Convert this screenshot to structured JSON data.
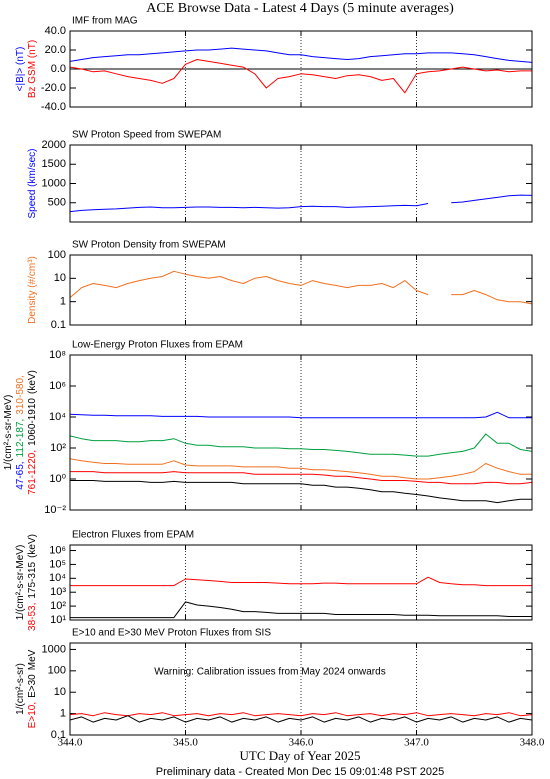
{
  "title": "ACE Browse Data - Latest 4 Days (5 minute averages)",
  "x_label": "UTC Day of Year 2025",
  "footer": "Preliminary data - Created Mon Dec 15 09:01:48 PST 2025",
  "xlim": [
    344,
    348
  ],
  "xticks": [
    {
      "value": 344,
      "label": "344.0"
    },
    {
      "value": 345,
      "label": "345.0"
    },
    {
      "value": 346,
      "label": "346.0"
    },
    {
      "value": 347,
      "label": "347.0"
    },
    {
      "value": 348,
      "label": "348.0"
    }
  ],
  "grid": true,
  "x": [
    344.0,
    344.1,
    344.2,
    344.3,
    344.4,
    344.5,
    344.6,
    344.7,
    344.8,
    344.9,
    345.0,
    345.1,
    345.2,
    345.3,
    345.4,
    345.5,
    345.6,
    345.7,
    345.8,
    345.9,
    346.0,
    346.1,
    346.2,
    346.3,
    346.4,
    346.5,
    346.6,
    346.7,
    346.8,
    346.9,
    347.0,
    347.1,
    347.2,
    347.3,
    347.4,
    347.5,
    347.6,
    347.7,
    347.8,
    347.9,
    348.0
  ],
  "chart_data": [
    {
      "type": "line",
      "title": "IMF from MAG",
      "log": false,
      "zero_line": true,
      "ylim": [
        -40,
        40
      ],
      "yticks": [
        {
          "value": -40,
          "label": "-40.0"
        },
        {
          "value": -20,
          "label": "-20.0"
        },
        {
          "value": 0,
          "label": "0.0"
        },
        {
          "value": 20,
          "label": "20.0"
        },
        {
          "value": 40,
          "label": "40.0"
        }
      ],
      "series": [
        {
          "name": "<|B|> (nT)",
          "color": "#0000ff",
          "values": [
            8,
            10,
            12,
            13,
            14,
            15,
            15,
            16,
            17,
            18,
            19,
            20,
            20,
            21,
            22,
            21,
            20,
            19,
            17,
            15,
            15,
            13,
            12,
            11,
            10,
            11,
            13,
            14,
            15,
            16,
            16,
            17,
            17,
            17,
            16,
            15,
            13,
            11,
            9,
            8,
            7
          ]
        },
        {
          "name": "Bz GSM (nT)",
          "color": "#ff0000",
          "values": [
            2,
            0,
            -3,
            -2,
            -5,
            -8,
            -10,
            -12,
            -15,
            -10,
            5,
            10,
            8,
            6,
            4,
            2,
            -5,
            -20,
            -10,
            -8,
            -5,
            -6,
            -8,
            -10,
            -7,
            -6,
            -8,
            -12,
            -10,
            -25,
            -5,
            -3,
            -2,
            0,
            2,
            0,
            -2,
            -1,
            -3,
            -2,
            -2
          ]
        }
      ]
    },
    {
      "type": "line",
      "title": "SW Proton Speed from SWEPAM",
      "log": false,
      "y_label": "Speed (km/sec)",
      "ylim": [
        0,
        2000
      ],
      "yticks": [
        500,
        1000,
        1500,
        2000
      ],
      "series": [
        {
          "color": "#0000ff",
          "values": [
            270,
            300,
            320,
            330,
            340,
            360,
            380,
            390,
            370,
            370,
            380,
            390,
            390,
            380,
            380,
            370,
            380,
            370,
            360,
            370,
            400,
            410,
            400,
            400,
            380,
            390,
            400,
            410,
            420,
            430,
            420,
            480,
            null,
            500,
            520,
            560,
            600,
            640,
            680,
            700,
            690
          ]
        }
      ]
    },
    {
      "type": "line",
      "title": "SW Proton Density from SWEPAM",
      "log": true,
      "y_label": "Density (#/cm³)",
      "ylim": [
        0.1,
        100
      ],
      "yticks": [
        0.1,
        1,
        10,
        100
      ],
      "series": [
        {
          "color": "#f07020",
          "values": [
            1.5,
            4,
            6,
            5,
            4,
            6,
            8,
            10,
            12,
            20,
            15,
            12,
            10,
            12,
            8,
            6,
            10,
            12,
            8,
            6,
            5,
            8,
            6,
            5,
            4,
            5,
            5,
            6,
            4,
            8,
            3,
            2,
            null,
            2,
            2,
            3,
            2,
            1.2,
            1,
            1,
            0.8
          ]
        }
      ]
    },
    {
      "type": "line",
      "title": "Low-Energy Proton Fluxes from EPAM",
      "log": true,
      "y_label": "1/(cm²-s-sr-MeV)",
      "y_unit": "(keV)",
      "ylim": [
        0.01,
        100000000
      ],
      "yticks": [
        {
          "value": 0.01,
          "label": "10⁻²"
        },
        {
          "value": 1,
          "label": "10⁰"
        },
        {
          "value": 100,
          "label": "10²"
        },
        {
          "value": 10000,
          "label": "10⁴"
        },
        {
          "value": 1000000,
          "label": "10⁶"
        },
        {
          "value": 100000000,
          "label": "10⁸"
        }
      ],
      "series": [
        {
          "name": "47-65,",
          "color": "#0000ff",
          "values": [
            15000,
            14000,
            13000,
            13000,
            12000,
            12000,
            12000,
            12000,
            11000,
            11000,
            11000,
            11000,
            10000,
            10000,
            10000,
            10000,
            10000,
            10000,
            10000,
            10000,
            9000,
            9000,
            9000,
            9000,
            9000,
            9000,
            9000,
            9000,
            9000,
            9000,
            9000,
            9000,
            9000,
            9000,
            9000,
            9000,
            10000,
            20000,
            9000,
            9000,
            9000
          ]
        },
        {
          "name": "112-187,",
          "color": "#00a040",
          "values": [
            600,
            400,
            300,
            300,
            300,
            250,
            250,
            300,
            300,
            400,
            200,
            150,
            150,
            120,
            120,
            120,
            100,
            100,
            100,
            90,
            90,
            80,
            80,
            70,
            60,
            50,
            40,
            40,
            40,
            35,
            30,
            30,
            40,
            50,
            60,
            100,
            800,
            200,
            200,
            80,
            60
          ]
        },
        {
          "name": "310-580,",
          "color": "#f07020",
          "values": [
            20,
            15,
            12,
            10,
            10,
            9,
            9,
            9,
            9,
            15,
            8,
            7,
            7,
            7,
            7,
            6,
            6,
            6,
            6,
            5,
            5,
            4,
            4,
            3.5,
            3,
            2.5,
            2,
            1.5,
            1.5,
            1.2,
            1,
            1,
            1.2,
            1.5,
            2,
            3,
            10,
            5,
            3,
            2,
            2
          ]
        },
        {
          "name": "761-1220,",
          "color": "#ff0000",
          "values": [
            3,
            3,
            3,
            2.5,
            2.5,
            2.5,
            2.5,
            2.5,
            2.5,
            3,
            2.5,
            2.5,
            2.5,
            2.5,
            2.5,
            2.5,
            2,
            2,
            2,
            2,
            2,
            2,
            1.8,
            1.5,
            1.5,
            1.2,
            1,
            0.8,
            0.8,
            0.8,
            0.7,
            0.6,
            0.6,
            0.5,
            0.5,
            0.5,
            0.6,
            0.6,
            0.5,
            0.5,
            0.6
          ]
        },
        {
          "name": "1060-1910",
          "color": "#000000",
          "values": [
            0.8,
            0.8,
            0.8,
            0.7,
            0.7,
            0.7,
            0.7,
            0.6,
            0.6,
            0.7,
            0.6,
            0.6,
            0.6,
            0.6,
            0.6,
            0.5,
            0.5,
            0.5,
            0.5,
            0.5,
            0.5,
            0.4,
            0.4,
            0.3,
            0.3,
            0.25,
            0.2,
            0.15,
            0.15,
            0.12,
            0.1,
            0.08,
            0.06,
            0.05,
            0.04,
            0.04,
            0.04,
            0.03,
            0.04,
            0.05,
            0.05
          ]
        }
      ]
    },
    {
      "type": "line",
      "title": "Electron Fluxes from EPAM",
      "log": true,
      "y_label": "1/(cm²-s-sr-MeV)",
      "y_unit": "(keV)",
      "ylim": [
        10,
        2500000
      ],
      "yticks": [
        {
          "value": 10,
          "label": "10¹"
        },
        {
          "value": 100,
          "label": "10²"
        },
        {
          "value": 1000,
          "label": "10³"
        },
        {
          "value": 10000,
          "label": "10⁴"
        },
        {
          "value": 100000,
          "label": "10⁵"
        },
        {
          "value": 1000000,
          "label": "10⁶"
        }
      ],
      "series": [
        {
          "name": "38-53,",
          "color": "#ff0000",
          "values": [
            3000,
            3000,
            3000,
            3000,
            3000,
            3000,
            3000,
            3000,
            3000,
            3000,
            9000,
            8000,
            7000,
            6000,
            5000,
            5000,
            5000,
            5000,
            4500,
            4000,
            4000,
            4000,
            4500,
            4500,
            4000,
            4000,
            4000,
            4000,
            4000,
            4000,
            4000,
            12000,
            5000,
            4000,
            3500,
            3500,
            3000,
            3000,
            3000,
            3000,
            3000
          ]
        },
        {
          "name": "175-315",
          "color": "#000000",
          "values": [
            15,
            15,
            15,
            15,
            15,
            15,
            15,
            15,
            15,
            15,
            200,
            120,
            100,
            80,
            60,
            40,
            40,
            35,
            30,
            30,
            30,
            30,
            30,
            25,
            25,
            25,
            25,
            25,
            25,
            22,
            22,
            22,
            20,
            20,
            20,
            20,
            20,
            20,
            18,
            18,
            18
          ]
        }
      ]
    },
    {
      "type": "line",
      "title": "E>10 and E>30 MeV Proton Fluxes from SIS",
      "log": true,
      "y_label": "1/(cm²-s-sr)",
      "y_unit": "MeV",
      "annotation": "Warning: Calibration issues from May 2024 onwards",
      "annotation_color": "#ff0000",
      "ylim": [
        0.1,
        2000
      ],
      "yticks": [
        0.1,
        1,
        10,
        100,
        1000
      ],
      "series": [
        {
          "name": "E>10,",
          "color": "#ff0000",
          "values": [
            0.9,
            1.0,
            0.8,
            1.1,
            0.9,
            0.8,
            1.0,
            0.9,
            1.1,
            0.8,
            0.9,
            1.0,
            0.8,
            1.0,
            0.9,
            1.1,
            0.8,
            0.9,
            1.0,
            0.9,
            0.8,
            1.0,
            0.9,
            1.1,
            0.8,
            0.9,
            1.0,
            0.8,
            1.0,
            0.9,
            1.1,
            0.8,
            0.9,
            1.0,
            0.9,
            0.8,
            1.0,
            0.9,
            1.1,
            0.8,
            0.9
          ]
        },
        {
          "name": "E>30",
          "color": "#000000",
          "values": [
            0.5,
            0.7,
            0.4,
            0.6,
            0.5,
            0.8,
            0.4,
            0.6,
            0.5,
            0.7,
            0.4,
            0.6,
            0.5,
            0.7,
            0.4,
            0.6,
            0.5,
            0.7,
            0.4,
            0.6,
            0.5,
            0.7,
            0.4,
            0.6,
            0.5,
            0.7,
            0.4,
            0.6,
            0.5,
            0.7,
            0.4,
            0.6,
            0.5,
            0.7,
            0.4,
            0.6,
            0.5,
            0.7,
            0.4,
            0.6,
            0.5
          ]
        }
      ]
    }
  ]
}
